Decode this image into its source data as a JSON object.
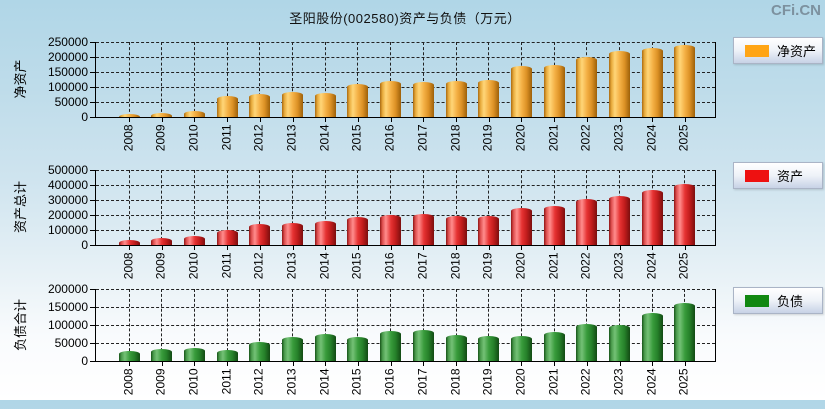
{
  "title": "圣阳股份(002580)资产与负债（万元）",
  "watermark": "CFi.CN",
  "legends": [
    {
      "label": "净资产",
      "color": "#ffa515"
    },
    {
      "label": "资产",
      "color": "#ee1111"
    },
    {
      "label": "负债",
      "color": "#118811"
    }
  ],
  "chart_data": [
    {
      "type": "bar",
      "title": "净资产",
      "ylabel": "净资产",
      "legend": "净资产",
      "bar_color": "#f5a623",
      "grid": true,
      "legend_position": "right",
      "ylim": [
        0,
        250000
      ],
      "ytick_step": 50000,
      "yticks": [
        0,
        50000,
        100000,
        150000,
        200000,
        250000
      ],
      "categories": [
        "2008",
        "2009",
        "2010",
        "2011",
        "2012",
        "2013",
        "2014",
        "2015",
        "2016",
        "2017",
        "2018",
        "2019",
        "2020",
        "2021",
        "2022",
        "2023",
        "2024",
        "2025"
      ],
      "values": [
        9000,
        15000,
        20000,
        70000,
        78000,
        83000,
        79000,
        110000,
        120000,
        118000,
        121000,
        123000,
        171000,
        174000,
        201000,
        219000,
        231000,
        239000
      ]
    },
    {
      "type": "bar",
      "title": "资产总计",
      "ylabel": "资产总计",
      "legend": "资产",
      "bar_color": "#e62222",
      "grid": true,
      "legend_position": "right",
      "ylim": [
        0,
        500000
      ],
      "ytick_step": 100000,
      "yticks": [
        0,
        100000,
        200000,
        300000,
        400000,
        500000
      ],
      "categories": [
        "2008",
        "2009",
        "2010",
        "2011",
        "2012",
        "2013",
        "2014",
        "2015",
        "2016",
        "2017",
        "2018",
        "2019",
        "2020",
        "2021",
        "2022",
        "2023",
        "2024",
        "2025"
      ],
      "values": [
        37000,
        50000,
        62000,
        103000,
        137000,
        150000,
        157000,
        184000,
        203000,
        207000,
        195000,
        193000,
        248000,
        260000,
        305000,
        327000,
        367000,
        404000
      ]
    },
    {
      "type": "bar",
      "title": "负债合计",
      "ylabel": "负债合计",
      "legend": "负债",
      "bar_color": "#389b3b",
      "grid": true,
      "legend_position": "right",
      "ylim": [
        0,
        200000
      ],
      "ytick_step": 50000,
      "yticks": [
        0,
        50000,
        100000,
        150000,
        200000
      ],
      "categories": [
        "2008",
        "2009",
        "2010",
        "2011",
        "2012",
        "2013",
        "2014",
        "2015",
        "2016",
        "2017",
        "2018",
        "2019",
        "2020",
        "2021",
        "2022",
        "2023",
        "2024",
        "2025"
      ],
      "values": [
        28000,
        33500,
        36500,
        31000,
        52000,
        67000,
        74500,
        67000,
        83000,
        85000,
        73000,
        70000,
        70500,
        80000,
        104000,
        101500,
        134000,
        161000
      ]
    }
  ]
}
